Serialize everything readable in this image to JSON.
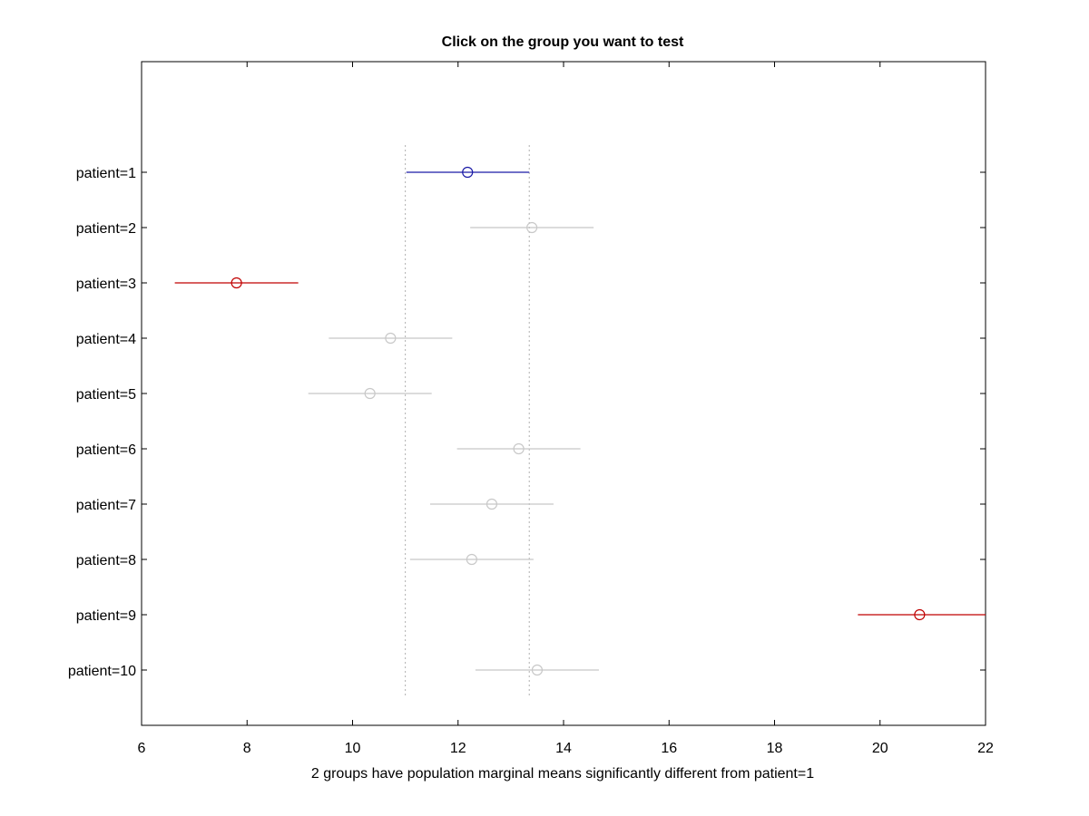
{
  "chart_data": {
    "type": "scatter",
    "title": "Click on the group you want to test",
    "xlabel": "2 groups have population marginal means significantly different from patient=1",
    "ylabel": "",
    "xlim": [
      6,
      22
    ],
    "xticks": [
      6,
      8,
      10,
      12,
      14,
      16,
      18,
      20,
      22
    ],
    "grid": false,
    "legend": "none",
    "selected_group": "patient=1",
    "reference_interval": [
      11.0,
      13.35
    ],
    "groups": [
      {
        "label": "patient=1",
        "mean": 12.18,
        "lower": 11.02,
        "upper": 13.35,
        "status": "selected"
      },
      {
        "label": "patient=2",
        "mean": 13.4,
        "lower": 12.23,
        "upper": 14.57,
        "status": "not-significant"
      },
      {
        "label": "patient=3",
        "mean": 7.8,
        "lower": 6.63,
        "upper": 8.97,
        "status": "significant"
      },
      {
        "label": "patient=4",
        "mean": 10.72,
        "lower": 9.55,
        "upper": 11.89,
        "status": "not-significant"
      },
      {
        "label": "patient=5",
        "mean": 10.33,
        "lower": 9.16,
        "upper": 11.5,
        "status": "not-significant"
      },
      {
        "label": "patient=6",
        "mean": 13.15,
        "lower": 11.98,
        "upper": 14.32,
        "status": "not-significant"
      },
      {
        "label": "patient=7",
        "mean": 12.64,
        "lower": 11.47,
        "upper": 13.81,
        "status": "not-significant"
      },
      {
        "label": "patient=8",
        "mean": 12.26,
        "lower": 11.09,
        "upper": 13.43,
        "status": "not-significant"
      },
      {
        "label": "patient=9",
        "mean": 20.75,
        "lower": 19.58,
        "upper": 22.0,
        "status": "significant"
      },
      {
        "label": "patient=10",
        "mean": 13.5,
        "lower": 12.33,
        "upper": 14.67,
        "status": "not-significant"
      }
    ],
    "colors": {
      "selected": "#1a1aa6",
      "significant": "#c00000",
      "not-significant": "#c8c8c8",
      "reference_lines": "#b0b0b0",
      "axes": "#000000"
    }
  }
}
